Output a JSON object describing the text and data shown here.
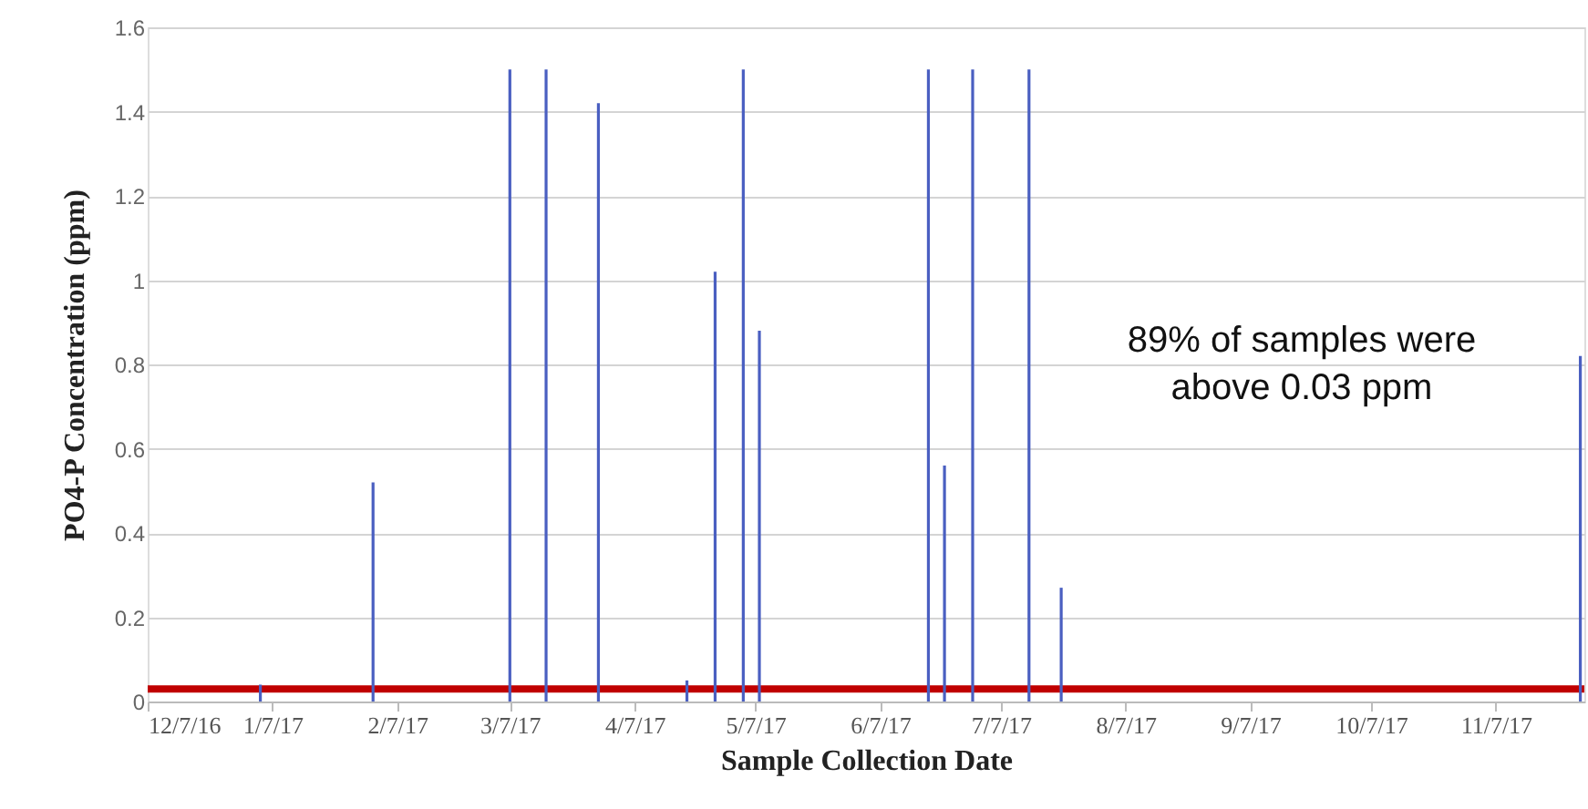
{
  "chart_data": {
    "type": "bar",
    "xlabel": "Sample Collection Date",
    "ylabel": "PO4-P Concentration (ppm)",
    "x": [
      "2017-01-04",
      "2017-02-01",
      "2017-03-07",
      "2017-03-16",
      "2017-03-29",
      "2017-04-20",
      "2017-04-27",
      "2017-05-04",
      "2017-05-08",
      "2017-06-19",
      "2017-06-23",
      "2017-06-30",
      "2017-07-14",
      "2017-07-22",
      "2017-11-28"
    ],
    "series": [
      {
        "color": "#4a5fc1",
        "values": [
          0.04,
          0.52,
          1.5,
          1.5,
          1.42,
          0.05,
          1.02,
          1.5,
          0.88,
          1.5,
          0.56,
          1.5,
          1.5,
          0.27,
          0.82
        ]
      }
    ],
    "xlim": [
      "2016-12-07",
      "2017-11-29"
    ],
    "xticks": [
      {
        "value": "2016-12-07",
        "label": "12/7/16"
      },
      {
        "value": "2017-01-07",
        "label": "1/7/17"
      },
      {
        "value": "2017-02-07",
        "label": "2/7/17"
      },
      {
        "value": "2017-03-07",
        "label": "3/7/17"
      },
      {
        "value": "2017-04-07",
        "label": "4/7/17"
      },
      {
        "value": "2017-05-07",
        "label": "5/7/17"
      },
      {
        "value": "2017-06-07",
        "label": "6/7/17"
      },
      {
        "value": "2017-07-07",
        "label": "7/7/17"
      },
      {
        "value": "2017-08-07",
        "label": "8/7/17"
      },
      {
        "value": "2017-09-07",
        "label": "9/7/17"
      },
      {
        "value": "2017-10-07",
        "label": "10/7/17"
      },
      {
        "value": "2017-11-07",
        "label": "11/7/17"
      }
    ],
    "ylim": [
      0,
      1.6
    ],
    "yticks": [
      0,
      0.2,
      0.4,
      0.6,
      0.8,
      1,
      1.2,
      1.4,
      1.6
    ],
    "grid": "y",
    "ref_lines": [
      {
        "axis": "y",
        "value": 0.03,
        "color": "#c00000"
      }
    ],
    "annotations": [
      "89% of samples were\nabove 0.03 ppm"
    ]
  }
}
